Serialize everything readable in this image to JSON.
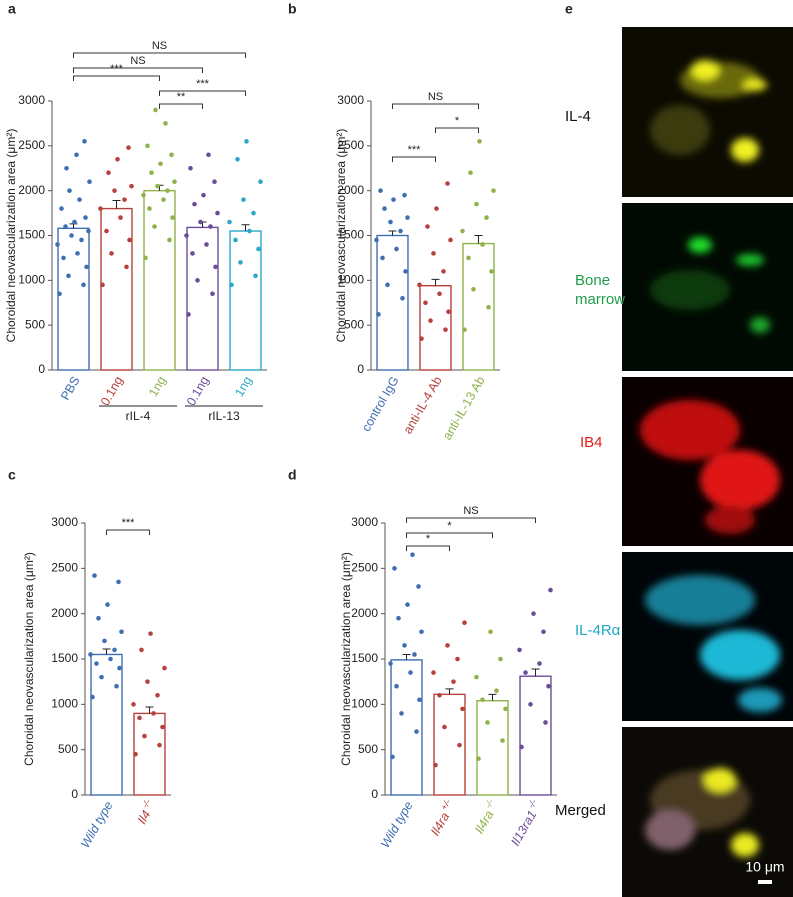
{
  "chart_data": [
    {
      "type": "bar",
      "panel": "a",
      "ylabel": "Choroidal neovascularization area (μm²)",
      "ylim": [
        0,
        3000
      ],
      "yticks": [
        0,
        500,
        1000,
        1500,
        2000,
        2500,
        3000
      ],
      "categories": [
        "PBS",
        "0.1ng",
        "1ng",
        "0.1ng",
        "1ng"
      ],
      "category_sups": [
        null,
        null,
        null,
        null,
        null
      ],
      "category_italic": false,
      "colors": [
        "#3f6eb3",
        "#b8403d",
        "#8fb24a",
        "#6b4d98",
        "#2ba7c8"
      ],
      "values": [
        1580,
        1800,
        2000,
        1590,
        1550
      ],
      "errors": [
        50,
        90,
        60,
        60,
        70
      ],
      "points": [
        [
          850,
          950,
          1050,
          1150,
          1250,
          1300,
          1400,
          1450,
          1500,
          1550,
          1600,
          1650,
          1700,
          1800,
          1900,
          2000,
          2100,
          2250,
          2400,
          2550
        ],
        [
          950,
          1150,
          1300,
          1450,
          1550,
          1700,
          1800,
          1900,
          2000,
          2050,
          2200,
          2350,
          2480
        ],
        [
          1250,
          1450,
          1600,
          1700,
          1800,
          1900,
          1950,
          2000,
          2050,
          2100,
          2200,
          2300,
          2400,
          2500,
          2750,
          2900
        ],
        [
          620,
          850,
          1000,
          1150,
          1300,
          1400,
          1500,
          1600,
          1650,
          1750,
          1850,
          1950,
          2100,
          2250,
          2400
        ],
        [
          950,
          1050,
          1200,
          1350,
          1450,
          1550,
          1650,
          1750,
          1900,
          2100,
          2350,
          2550
        ]
      ],
      "brackets": [
        {
          "from": 0,
          "to": 4,
          "label": "NS"
        },
        {
          "from": 0,
          "to": 3,
          "label": "NS"
        },
        {
          "from": 0,
          "to": 2,
          "label": "***"
        },
        {
          "from": 2,
          "to": 4,
          "label": "***"
        },
        {
          "from": 2,
          "to": 3,
          "label": "**"
        }
      ],
      "groups": [
        {
          "from": 1,
          "to": 2,
          "label": "rIL-4"
        },
        {
          "from": 3,
          "to": 4,
          "label": "rIL-13"
        }
      ]
    },
    {
      "type": "bar",
      "panel": "b",
      "ylabel": "Choroidal neovascularization area (μm²)",
      "ylim": [
        0,
        3000
      ],
      "yticks": [
        0,
        500,
        1000,
        1500,
        2000,
        2500,
        3000
      ],
      "categories": [
        "control IgG",
        "anti-IL-4 Ab",
        "anti-IL-13 Ab"
      ],
      "category_sups": [
        null,
        null,
        null
      ],
      "category_italic": false,
      "colors": [
        "#3f6eb3",
        "#b8403d",
        "#8fb24a"
      ],
      "values": [
        1500,
        940,
        1410
      ],
      "errors": [
        50,
        70,
        90
      ],
      "points": [
        [
          620,
          800,
          950,
          1100,
          1250,
          1350,
          1450,
          1550,
          1650,
          1700,
          1800,
          1900,
          1950,
          2000
        ],
        [
          350,
          450,
          550,
          650,
          750,
          850,
          950,
          1100,
          1300,
          1450,
          1600,
          1800,
          2080
        ],
        [
          450,
          700,
          900,
          1100,
          1250,
          1400,
          1550,
          1700,
          1850,
          2000,
          2200,
          2550
        ]
      ],
      "brackets": [
        {
          "from": 0,
          "to": 2,
          "label": "NS"
        },
        {
          "from": 1,
          "to": 2,
          "label": "*"
        },
        {
          "from": 0,
          "to": 1,
          "label": "***"
        }
      ],
      "groups": []
    },
    {
      "type": "bar",
      "panel": "c",
      "ylabel": "Choroidal neovascularization area (μm²)",
      "ylim": [
        0,
        3000
      ],
      "yticks": [
        0,
        500,
        1000,
        1500,
        2000,
        2500,
        3000
      ],
      "categories": [
        "Wild type",
        "Il4"
      ],
      "category_sups": [
        null,
        "-/-"
      ],
      "category_italic": true,
      "colors": [
        "#3f6eb3",
        "#b8403d"
      ],
      "values": [
        1550,
        900
      ],
      "errors": [
        60,
        70
      ],
      "points": [
        [
          1080,
          1200,
          1300,
          1400,
          1450,
          1500,
          1550,
          1600,
          1700,
          1800,
          1950,
          2100,
          2350,
          2420
        ],
        [
          450,
          550,
          650,
          750,
          850,
          900,
          1000,
          1100,
          1250,
          1400,
          1600,
          1780
        ]
      ],
      "brackets": [
        {
          "from": 0,
          "to": 1,
          "label": "***"
        }
      ],
      "groups": []
    },
    {
      "type": "bar",
      "panel": "d",
      "ylabel": "Choroidal neovascularization area (μm²)",
      "ylim": [
        0,
        3000
      ],
      "yticks": [
        0,
        500,
        1000,
        1500,
        2000,
        2500,
        3000
      ],
      "categories": [
        "Wild type",
        "Il4ra",
        "Il4ra",
        "Il13ra1"
      ],
      "category_sups": [
        null,
        "+/-",
        "-/-",
        "-/-"
      ],
      "category_italic": true,
      "colors": [
        "#3f6eb3",
        "#b8403d",
        "#8fb24a",
        "#6b4d98"
      ],
      "values": [
        1490,
        1110,
        1040,
        1310
      ],
      "errors": [
        60,
        60,
        70,
        80
      ],
      "points": [
        [
          420,
          700,
          900,
          1050,
          1200,
          1350,
          1450,
          1550,
          1650,
          1800,
          1950,
          2100,
          2300,
          2500,
          2650
        ],
        [
          330,
          550,
          750,
          950,
          1100,
          1250,
          1350,
          1500,
          1650,
          1900
        ],
        [
          400,
          600,
          800,
          950,
          1050,
          1150,
          1300,
          1500,
          1800
        ],
        [
          530,
          800,
          1000,
          1200,
          1350,
          1450,
          1600,
          1800,
          2000,
          2260
        ]
      ],
      "brackets": [
        {
          "from": 0,
          "to": 3,
          "label": "NS"
        },
        {
          "from": 0,
          "to": 2,
          "label": "*"
        },
        {
          "from": 0,
          "to": 1,
          "label": "*"
        }
      ],
      "groups": []
    }
  ],
  "images": {
    "panel": "e",
    "labels": [
      {
        "text": "IL-4",
        "color": "#111111"
      },
      {
        "text": "Bone",
        "color": "#1f9e4a"
      },
      {
        "text": "marrow",
        "color": "#1f9e4a"
      },
      {
        "text": "IB4",
        "color": "#e0201c"
      },
      {
        "text": "IL-4Rα",
        "color": "#1fa8c9"
      },
      {
        "text": "Merged",
        "color": "#111111"
      }
    ],
    "scale_bar": "10 μm"
  }
}
